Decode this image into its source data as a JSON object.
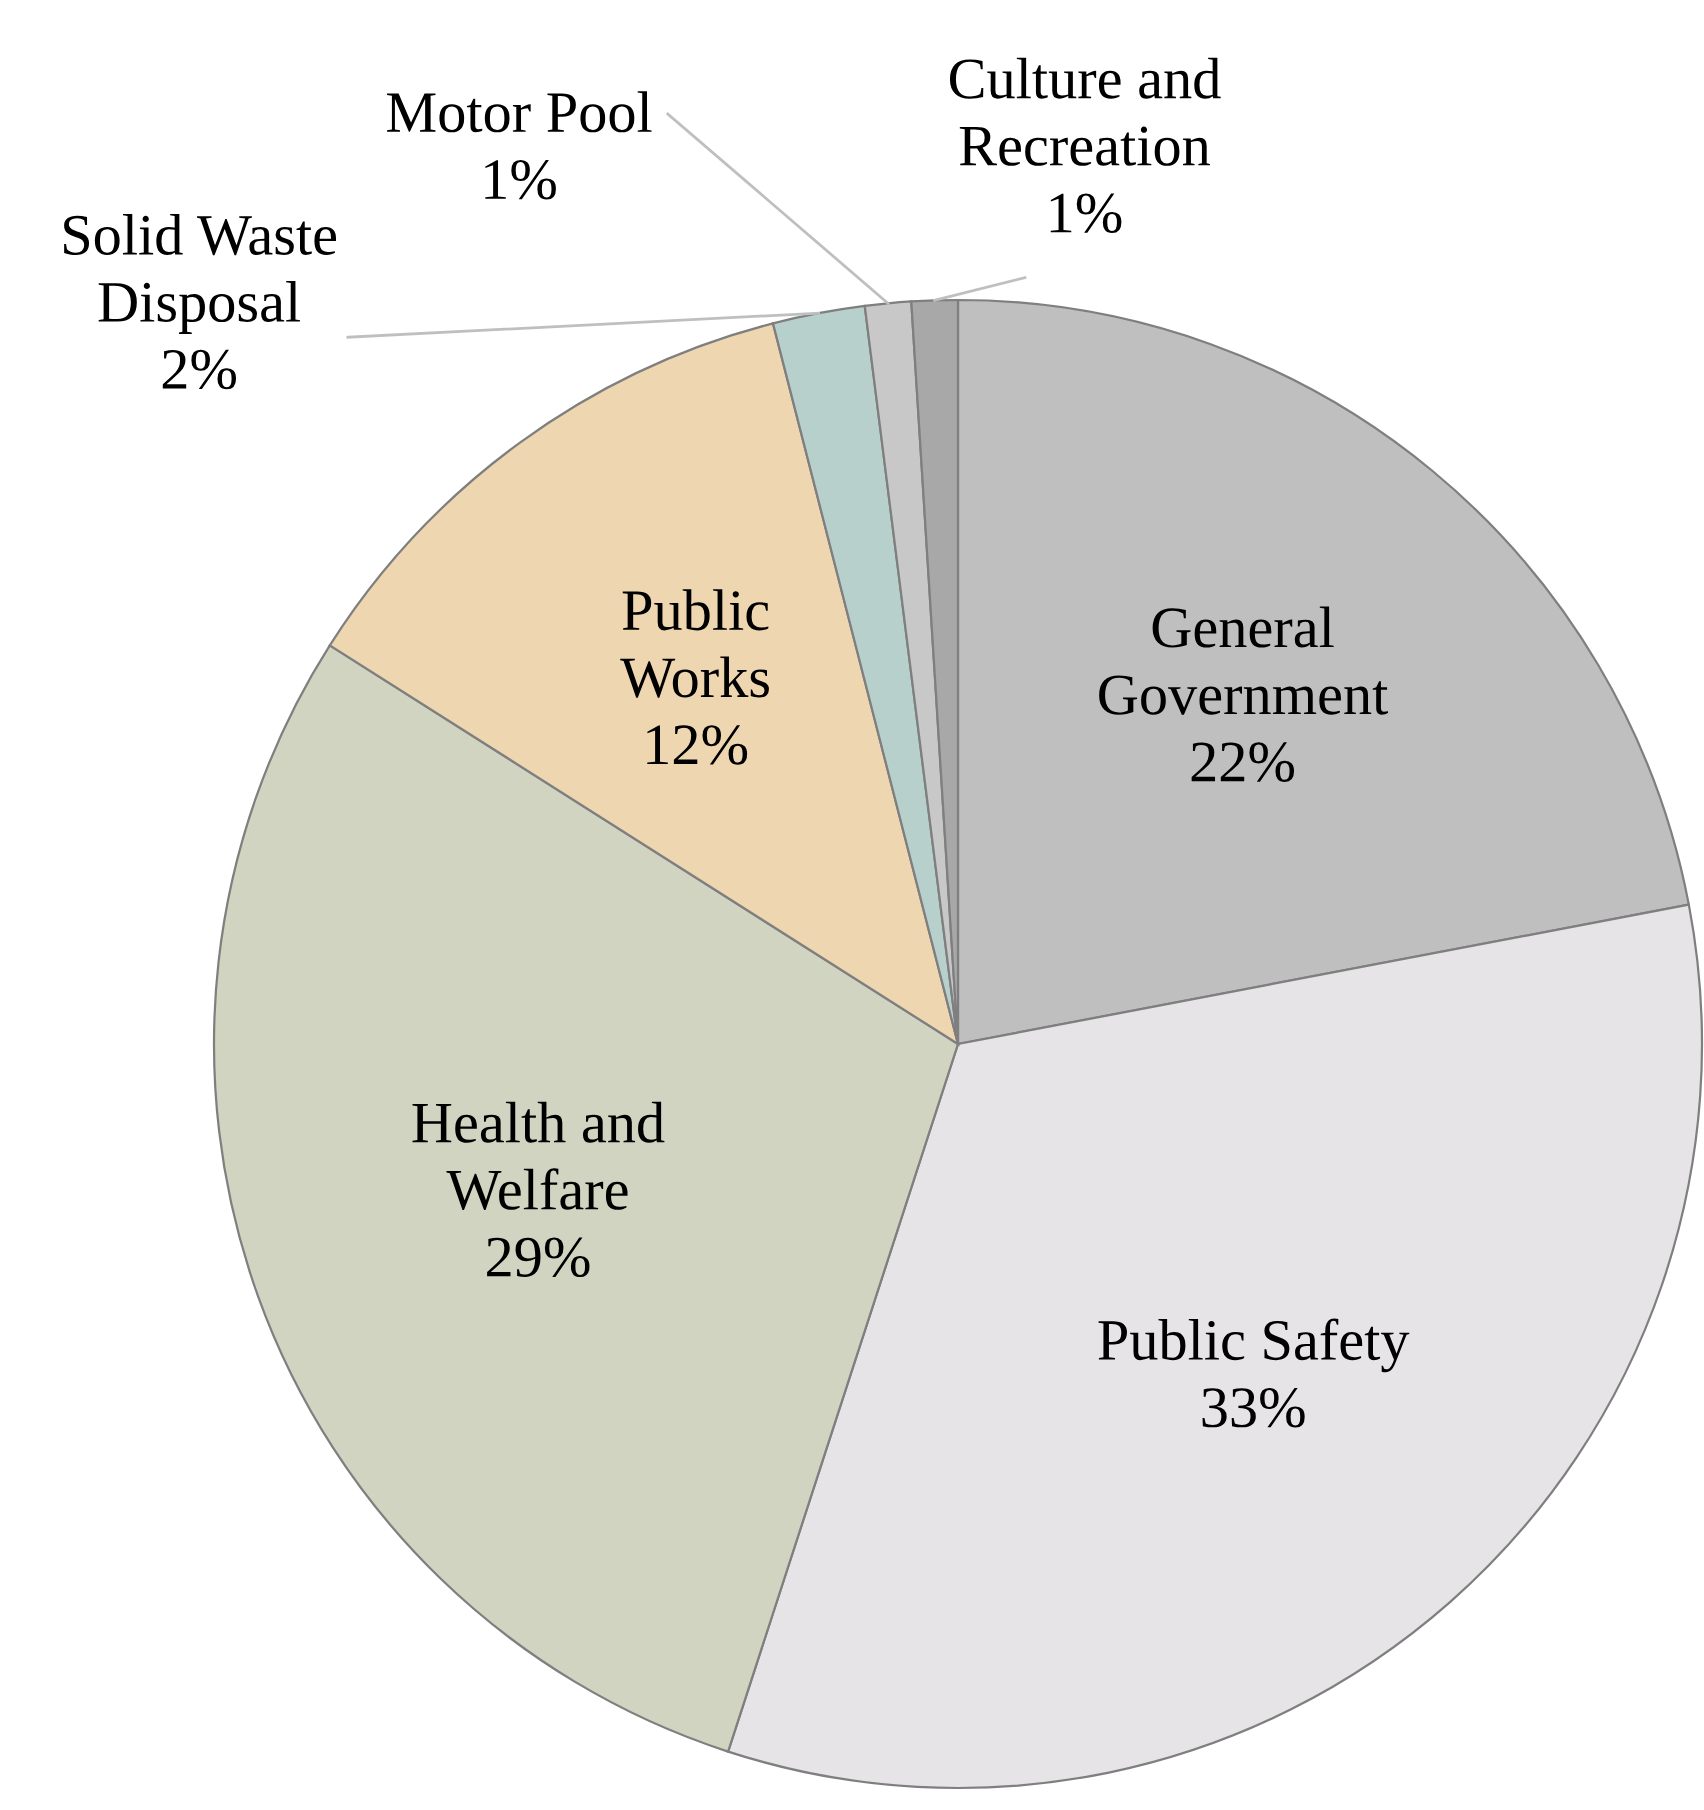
{
  "chart_data": {
    "type": "pie",
    "categories": [
      "General Government",
      "Public Safety",
      "Health and Welfare",
      "Public Works",
      "Solid Waste Disposal",
      "Motor Pool",
      "Culture and Recreation"
    ],
    "values": [
      22,
      33,
      29,
      12,
      2,
      1,
      1
    ],
    "colors": [
      "#bfbfbf",
      "#e6e4e6",
      "#d0d4c0",
      "#eed6b0",
      "#b8d0cb",
      "#c8c8c8",
      "#a8a8a8"
    ],
    "value_labels": [
      "22%",
      "33%",
      "29%",
      "12%",
      "2%",
      "1%",
      "1%"
    ]
  }
}
